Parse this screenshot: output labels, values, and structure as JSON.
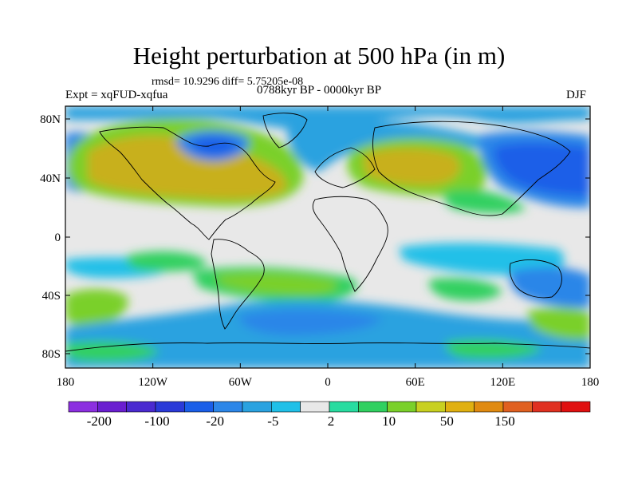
{
  "title": "Height perturbation at 500 hPa (in m)",
  "rmsd_line": "rmsd= 10.9296 diff= 5.75205e-08",
  "expt": "Expt = xqFUD-xqfua",
  "period": "0788kyr BP - 0000kyr BP",
  "season": "DJF",
  "lat_ticks": [
    "80N",
    "40N",
    "0",
    "40S",
    "80S"
  ],
  "lon_ticks": [
    "180",
    "120W",
    "60W",
    "0",
    "60E",
    "120E",
    "180"
  ],
  "colorbar": {
    "colors": [
      "#8c2fe0",
      "#6a1ed0",
      "#4a2ad0",
      "#2a3ad8",
      "#1a5ee8",
      "#2c86e8",
      "#2aa2e0",
      "#20c0e8",
      "#e8e8e8",
      "#28dca0",
      "#30d060",
      "#7ad02a",
      "#c8d020",
      "#e0b010",
      "#e08a10",
      "#e06020",
      "#e03020",
      "#e01010"
    ],
    "labels": [
      "-200",
      "-100",
      "-20",
      "-5",
      "2",
      "10",
      "50",
      "150"
    ]
  },
  "colors": {
    "strong_neg": "#1a5ee8",
    "neg": "#2c86e8",
    "weak_neg": "#20c0e8",
    "neutral": "#e8e8e8",
    "weak_pos": "#30d060",
    "pos": "#7ad02a",
    "strong_pos": "#c8b01a"
  }
}
